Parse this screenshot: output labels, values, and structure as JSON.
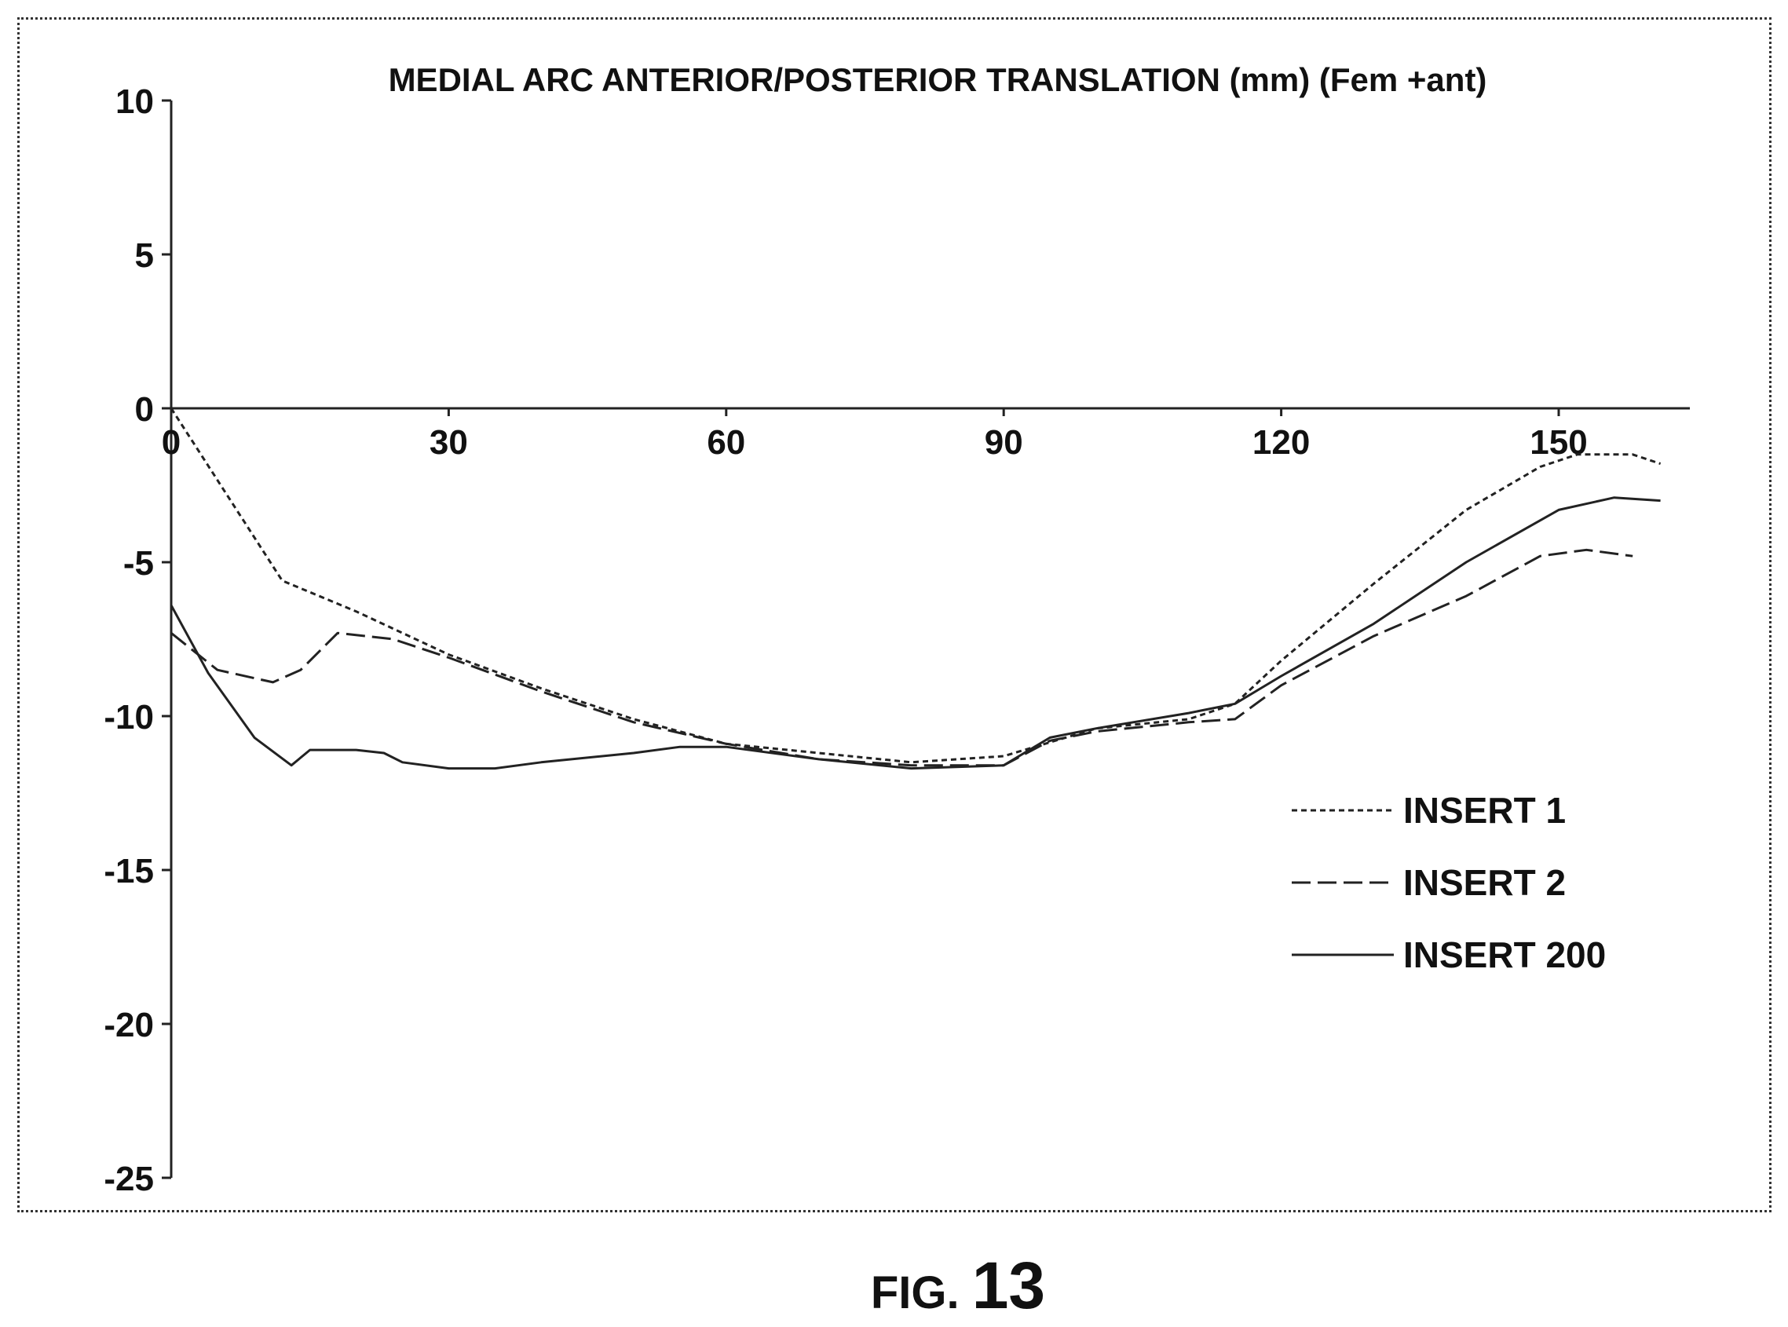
{
  "chart_data": {
    "type": "line",
    "title": "MEDIAL ARC ANTERIOR/POSTERIOR TRANSLATION (mm) (Fem +ant)",
    "xlabel": "",
    "ylabel": "",
    "xlim": [
      0,
      165
    ],
    "ylim": [
      -25,
      10
    ],
    "x_ticks": [
      0,
      30,
      60,
      90,
      120,
      150
    ],
    "y_ticks": [
      10,
      5,
      0,
      -5,
      -10,
      -15,
      -20,
      -25
    ],
    "grid": false,
    "legend_position": "right",
    "series": [
      {
        "name": "INSERT 1",
        "style": "dotted",
        "x": [
          0,
          12,
          20,
          30,
          40,
          50,
          60,
          70,
          80,
          90,
          100,
          110,
          115,
          120,
          130,
          140,
          148,
          152,
          158,
          161
        ],
        "y": [
          0,
          -5.6,
          -6.6,
          -8.0,
          -9.1,
          -10.1,
          -10.9,
          -11.2,
          -11.5,
          -11.3,
          -10.4,
          -10.1,
          -9.6,
          -8.2,
          -5.7,
          -3.3,
          -1.9,
          -1.5,
          -1.5,
          -1.8
        ]
      },
      {
        "name": "INSERT 2",
        "style": "dashed",
        "x": [
          0,
          5,
          11,
          14,
          18,
          24,
          30,
          40,
          50,
          60,
          70,
          80,
          90,
          95,
          100,
          110,
          115,
          120,
          130,
          140,
          148,
          153,
          158
        ],
        "y": [
          -7.3,
          -8.5,
          -8.9,
          -8.5,
          -7.3,
          -7.5,
          -8.1,
          -9.2,
          -10.2,
          -10.9,
          -11.4,
          -11.6,
          -11.6,
          -10.8,
          -10.5,
          -10.2,
          -10.1,
          -9.0,
          -7.4,
          -6.1,
          -4.8,
          -4.6,
          -4.8
        ]
      },
      {
        "name": "INSERT 200",
        "style": "solid",
        "x": [
          0,
          4,
          9,
          13,
          15,
          20,
          23,
          25,
          30,
          35,
          40,
          50,
          55,
          60,
          70,
          80,
          90,
          95,
          100,
          110,
          115,
          120,
          130,
          140,
          150,
          156,
          161
        ],
        "y": [
          -6.4,
          -8.6,
          -10.7,
          -11.6,
          -11.1,
          -11.1,
          -11.2,
          -11.5,
          -11.7,
          -11.7,
          -11.5,
          -11.2,
          -11.0,
          -11.0,
          -11.4,
          -11.7,
          -11.6,
          -10.7,
          -10.4,
          -9.9,
          -9.6,
          -8.7,
          -7.0,
          -5.0,
          -3.3,
          -2.9,
          -3.0
        ]
      }
    ]
  },
  "figure_label": "FIG. 13"
}
